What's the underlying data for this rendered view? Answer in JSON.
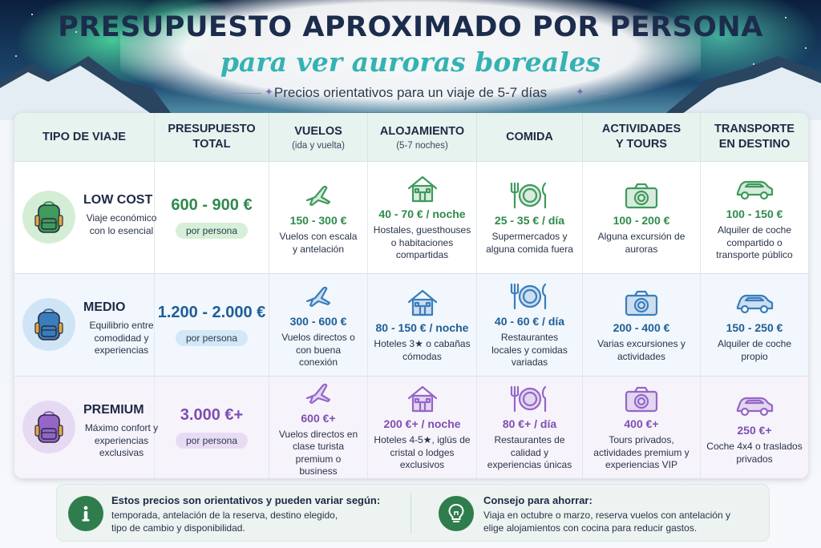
{
  "header": {
    "title": "PRESUPUESTO APROXIMADO POR PERSONA",
    "subtitle": "para ver auroras boreales",
    "tagline": "Precios orientativos para un viaje de 5-7 días"
  },
  "columns": [
    {
      "main": "TIPO DE VIAJE",
      "sub": ""
    },
    {
      "main": "PRESUPUESTO TOTAL",
      "sub": ""
    },
    {
      "main": "VUELOS",
      "sub": "(ida y vuelta)"
    },
    {
      "main": "ALOJAMIENTO",
      "sub": "(5-7 noches)"
    },
    {
      "main": "COMIDA",
      "sub": ""
    },
    {
      "main": "ACTIVIDADES Y TOURS",
      "sub": ""
    },
    {
      "main": "TRANSPORTE EN DESTINO",
      "sub": ""
    }
  ],
  "tiers": [
    {
      "name": "LOW COST",
      "description": "Viaje económico con lo esencial",
      "total": "600 - 900 €",
      "per_person": "por persona",
      "accent": "#2f8a4c",
      "pill_color": "#d6f0d8",
      "circle_color": "#d4eed6",
      "icon_color": "#3f9a5c",
      "row_tint": "#ffffff",
      "vuelos": {
        "price": "150 - 300 €",
        "desc": "Vuelos con escala y antelación"
      },
      "alojamiento": {
        "price": "40 - 70 € / noche",
        "desc": "Hostales, guesthouses o habitaciones compartidas"
      },
      "comida": {
        "price": "25 - 35 € / día",
        "desc": "Supermercados y alguna comida fuera"
      },
      "actividades": {
        "price": "100 - 200 €",
        "desc": "Alguna excursión de auroras"
      },
      "transporte": {
        "price": "100 - 150 €",
        "desc": "Alquiler de coche compartido o transporte público"
      }
    },
    {
      "name": "MEDIO",
      "description": "Equilibrio entre comodidad y experiencias",
      "total": "1.200 - 2.000 €",
      "per_person": "por persona",
      "accent": "#1f5e96",
      "pill_color": "#d3e8f7",
      "circle_color": "#cfe5f6",
      "icon_color": "#3a7dbd",
      "row_tint": "#f1f7fc",
      "vuelos": {
        "price": "300 - 600 €",
        "desc": "Vuelos directos o con buena conexión"
      },
      "alojamiento": {
        "price": "80 - 150 € / noche",
        "desc": "Hoteles 3★ o cabañas cómodas"
      },
      "comida": {
        "price": "40 - 60 € / día",
        "desc": "Restaurantes locales y comidas variadas"
      },
      "actividades": {
        "price": "200 - 400 €",
        "desc": "Varias excursiones y actividades"
      },
      "transporte": {
        "price": "150 - 250 €",
        "desc": "Alquiler de coche propio"
      }
    },
    {
      "name": "PREMIUM",
      "description": "Máximo confort y experiencias exclusivas",
      "total": "3.000 €+",
      "per_person": "por persona",
      "accent": "#7d4fb0",
      "pill_color": "#e8dcf4",
      "circle_color": "#e6daf3",
      "icon_color": "#9466c8",
      "row_tint": "#f7f3fb",
      "vuelos": {
        "price": "600 €+",
        "desc": "Vuelos directos en clase turista premium o business"
      },
      "alojamiento": {
        "price": "200 €+ / noche",
        "desc": "Hoteles 4-5★, iglús de cristal o lodges exclusivos"
      },
      "comida": {
        "price": "80 €+ / día",
        "desc": "Restaurantes de calidad y experiencias únicas"
      },
      "actividades": {
        "price": "400 €+",
        "desc": "Tours privados, actividades premium y experiencias VIP"
      },
      "transporte": {
        "price": "250 €+",
        "desc": "Coche 4x4 o traslados privados"
      }
    }
  ],
  "icons": {
    "type": "backpack-icon",
    "vuelos": "airplane-icon",
    "alojamiento": "house-icon",
    "comida": "plate-cutlery-icon",
    "actividades": "camera-icon",
    "transporte": "car-icon"
  },
  "footer": {
    "note": {
      "title": "Estos precios son orientativos y pueden variar según:",
      "body": "temporada, antelación de la reserva, destino elegido, tipo de cambio y disponibilidad.",
      "icon": "info-icon"
    },
    "tip": {
      "title": "Consejo para ahorrar:",
      "body": "Viaja en octubre o marzo, reserva vuelos con antelación y elige alojamientos con cocina para reducir gastos.",
      "icon": "lightbulb-icon"
    },
    "icon_bg": "#2f7d4c"
  }
}
